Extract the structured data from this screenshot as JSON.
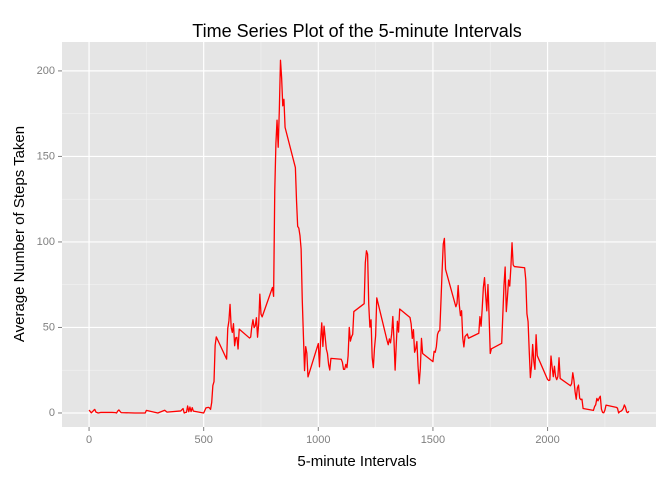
{
  "chart_data": {
    "type": "line",
    "title": "Time Series Plot of the 5-minute Intervals",
    "x_label": "5-minute Intervals",
    "y_label": "Average Number of Steps Taken",
    "color": "#ff0000",
    "grid": true,
    "xlim": [
      -118,
      2473
    ],
    "ylim": [
      -8.2,
      216.9
    ],
    "xticks": [
      0,
      500,
      1000,
      1500,
      2000
    ],
    "yticks": [
      0,
      50,
      100,
      150,
      200
    ],
    "x_minor_ticks": [
      250,
      750,
      1250,
      1750,
      2250
    ],
    "y_minor_ticks": [
      25,
      75,
      125,
      175
    ],
    "x": [
      0,
      10,
      20,
      25,
      30,
      40,
      50,
      100,
      115,
      120,
      125,
      130,
      140,
      200,
      230,
      245,
      250,
      300,
      330,
      340,
      400,
      410,
      415,
      420,
      425,
      430,
      435,
      440,
      445,
      450,
      455,
      500,
      510,
      520,
      525,
      530,
      535,
      540,
      545,
      550,
      555,
      600,
      605,
      610,
      615,
      620,
      625,
      630,
      635,
      640,
      645,
      650,
      655,
      700,
      705,
      710,
      715,
      720,
      725,
      730,
      735,
      740,
      745,
      750,
      755,
      800,
      805,
      810,
      815,
      820,
      825,
      830,
      835,
      840,
      845,
      850,
      855,
      900,
      905,
      910,
      915,
      920,
      925,
      930,
      935,
      940,
      945,
      950,
      955,
      1000,
      1005,
      1010,
      1015,
      1020,
      1025,
      1030,
      1035,
      1040,
      1045,
      1050,
      1055,
      1100,
      1105,
      1110,
      1115,
      1120,
      1125,
      1130,
      1135,
      1140,
      1145,
      1150,
      1155,
      1200,
      1205,
      1210,
      1215,
      1220,
      1225,
      1230,
      1235,
      1240,
      1245,
      1250,
      1255,
      1300,
      1305,
      1310,
      1315,
      1320,
      1325,
      1330,
      1335,
      1340,
      1345,
      1350,
      1355,
      1400,
      1405,
      1410,
      1415,
      1420,
      1425,
      1430,
      1435,
      1440,
      1445,
      1450,
      1455,
      1500,
      1505,
      1510,
      1515,
      1520,
      1525,
      1530,
      1535,
      1540,
      1545,
      1550,
      1555,
      1600,
      1605,
      1610,
      1615,
      1620,
      1625,
      1630,
      1635,
      1640,
      1645,
      1650,
      1655,
      1700,
      1705,
      1710,
      1715,
      1720,
      1725,
      1730,
      1735,
      1740,
      1745,
      1750,
      1755,
      1800,
      1805,
      1810,
      1815,
      1820,
      1825,
      1830,
      1835,
      1840,
      1845,
      1850,
      1855,
      1900,
      1905,
      1910,
      1915,
      1920,
      1925,
      1930,
      1935,
      1940,
      1945,
      1950,
      1955,
      2000,
      2005,
      2010,
      2015,
      2020,
      2025,
      2030,
      2035,
      2040,
      2045,
      2050,
      2055,
      2100,
      2105,
      2110,
      2115,
      2120,
      2125,
      2130,
      2135,
      2140,
      2145,
      2150,
      2155,
      2200,
      2205,
      2210,
      2215,
      2220,
      2225,
      2230,
      2235,
      2240,
      2245,
      2250,
      2255,
      2300,
      2305,
      2310,
      2315,
      2320,
      2325,
      2330,
      2335,
      2340,
      2345,
      2350,
      2355
    ],
    "values": [
      1.7,
      0.1,
      1.5,
      2.1,
      0.5,
      0,
      0.3,
      0.3,
      0.2,
      0,
      1.1,
      1.8,
      0.2,
      0,
      0,
      0,
      1.5,
      0,
      1.6,
      0.5,
      1.2,
      2.6,
      0,
      0.3,
      0.4,
      4.1,
      0.7,
      3.5,
      0.8,
      3.1,
      1.1,
      0,
      3.0,
      3.3,
      3.0,
      2.1,
      6.1,
      16.0,
      18.3,
      39.5,
      44.5,
      31.5,
      49.3,
      53.8,
      63.5,
      50.0,
      47.1,
      52.2,
      39.3,
      44.0,
      44.2,
      37.4,
      49.0,
      43.8,
      44.4,
      50.5,
      54.5,
      49.9,
      51.0,
      55.7,
      44.3,
      52.3,
      69.5,
      57.8,
      56.2,
      73.4,
      68.2,
      129.4,
      157.5,
      171.2,
      155.4,
      177.3,
      206.2,
      195.9,
      179.6,
      183.4,
      167.0,
      143.5,
      124.0,
      109.1,
      108.1,
      103.7,
      95.9,
      66.2,
      45.2,
      24.8,
      38.8,
      35.0,
      21.1,
      40.6,
      27.0,
      42.4,
      52.7,
      38.9,
      50.8,
      44.3,
      37.4,
      34.7,
      28.3,
      25.1,
      31.9,
      31.4,
      29.7,
      25.5,
      25.5,
      28.4,
      26.5,
      33.4,
      50.0,
      42.0,
      44.6,
      46.0,
      59.3,
      63.9,
      87.7,
      94.8,
      92.8,
      63.4,
      50.2,
      54.5,
      32.4,
      26.5,
      37.7,
      45.1,
      67.3,
      42.3,
      39.9,
      43.3,
      41.0,
      46.2,
      56.4,
      42.8,
      25.1,
      39.9,
      53.6,
      47.3,
      60.8,
      55.8,
      52.0,
      43.6,
      48.7,
      35.5,
      37.5,
      41.8,
      27.5,
      17.1,
      26.1,
      43.6,
      34.8,
      30.0,
      36.1,
      35.5,
      38.8,
      46.0,
      47.8,
      48.1,
      65.3,
      82.9,
      98.7,
      102.1,
      84.0,
      62.1,
      64.1,
      74.5,
      63.2,
      56.9,
      59.8,
      43.9,
      38.6,
      44.7,
      45.5,
      46.2,
      43.7,
      46.6,
      56.3,
      50.7,
      61.2,
      73.4,
      79.1,
      68.9,
      59.7,
      75.1,
      56.5,
      34.8,
      37.5,
      40.7,
      58.0,
      74.7,
      85.3,
      59.3,
      67.8,
      77.7,
      74.2,
      85.3,
      99.5,
      86.6,
      85.6,
      84.9,
      77.8,
      58.0,
      53.4,
      36.3,
      20.7,
      27.4,
      40.0,
      30.2,
      25.5,
      45.7,
      33.5,
      19.6,
      19.0,
      19.3,
      33.3,
      26.8,
      21.2,
      27.3,
      21.3,
      19.5,
      21.3,
      32.3,
      20.2,
      15.9,
      17.2,
      23.5,
      19.2,
      12.5,
      8.0,
      14.7,
      16.3,
      8.7,
      7.8,
      8.1,
      2.6,
      1.5,
      3.7,
      4.8,
      8.5,
      7.1,
      8.7,
      9.8,
      2.2,
      0.3,
      0.1,
      1.6,
      4.6,
      3.3,
      2.8,
      0,
      0.8,
      1.0,
      1.6,
      2.6,
      4.7,
      3.3,
      0.6,
      0.2,
      1.1
    ]
  }
}
